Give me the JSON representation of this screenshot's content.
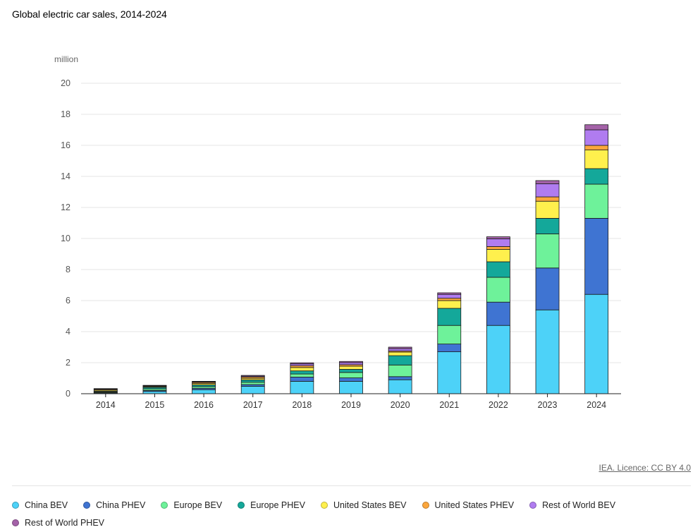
{
  "chart_data": {
    "type": "bar",
    "stacked": true,
    "title": "Global electric car sales, 2014-2024",
    "ylabel": "million",
    "xlabel": "",
    "ylim": [
      0,
      20
    ],
    "yticks": [
      0,
      2,
      4,
      6,
      8,
      10,
      12,
      14,
      16,
      18,
      20
    ],
    "grid": true,
    "legend_position": "bottom",
    "categories": [
      "2014",
      "2015",
      "2016",
      "2017",
      "2018",
      "2019",
      "2020",
      "2021",
      "2022",
      "2023",
      "2024"
    ],
    "series": [
      {
        "name": "China BEV",
        "color": "#4dd2f8",
        "values": [
          0.05,
          0.15,
          0.26,
          0.48,
          0.8,
          0.8,
          0.9,
          2.7,
          4.4,
          5.4,
          6.4
        ]
      },
      {
        "name": "China PHEV",
        "color": "#3f74d2",
        "values": [
          0.02,
          0.06,
          0.09,
          0.11,
          0.27,
          0.22,
          0.2,
          0.5,
          1.5,
          2.7,
          4.9
        ]
      },
      {
        "name": "Europe BEV",
        "color": "#6ef29a",
        "values": [
          0.05,
          0.1,
          0.11,
          0.15,
          0.2,
          0.35,
          0.75,
          1.2,
          1.6,
          2.2,
          2.2
        ]
      },
      {
        "name": "Europe PHEV",
        "color": "#14a89a",
        "values": [
          0.04,
          0.1,
          0.11,
          0.15,
          0.2,
          0.2,
          0.6,
          1.1,
          1.0,
          1.0,
          1.0
        ]
      },
      {
        "name": "United States BEV",
        "color": "#fff04d",
        "values": [
          0.07,
          0.05,
          0.09,
          0.1,
          0.22,
          0.2,
          0.23,
          0.5,
          0.8,
          1.1,
          1.2
        ]
      },
      {
        "name": "United States PHEV",
        "color": "#fba63c",
        "values": [
          0.05,
          0.04,
          0.07,
          0.09,
          0.12,
          0.1,
          0.07,
          0.15,
          0.18,
          0.28,
          0.3
        ]
      },
      {
        "name": "Rest of World BEV",
        "color": "#b07cf0",
        "values": [
          0.03,
          0.02,
          0.04,
          0.05,
          0.11,
          0.13,
          0.15,
          0.25,
          0.5,
          0.85,
          1.0
        ]
      },
      {
        "name": "Rest of World PHEV",
        "color": "#a462a8",
        "values": [
          0.02,
          0.02,
          0.03,
          0.05,
          0.07,
          0.08,
          0.1,
          0.1,
          0.13,
          0.2,
          0.33
        ]
      }
    ]
  },
  "footer": {
    "licence": "IEA. Licence: CC BY 4.0"
  }
}
